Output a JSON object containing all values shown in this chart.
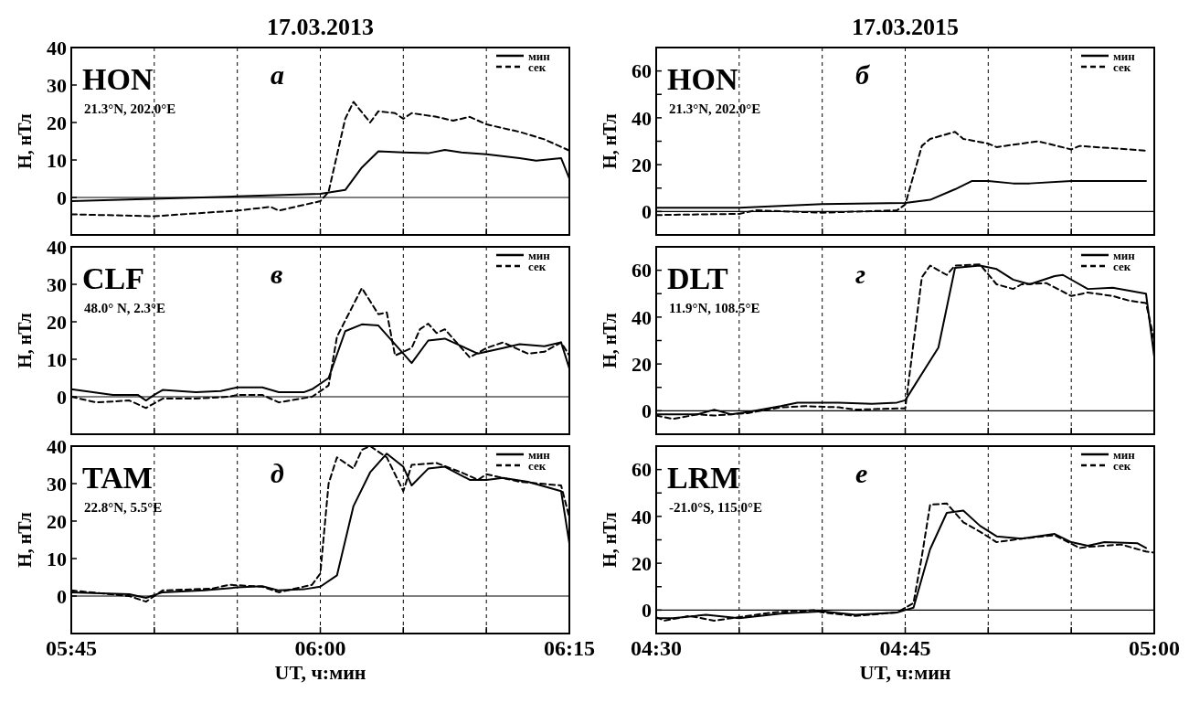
{
  "chart_data": [
    {
      "type": "line",
      "title": "17.03.2013",
      "ylabel": "H, нТл",
      "xlim": [
        5.75,
        6.25
      ],
      "ylim": [
        -10,
        40
      ],
      "xticks": [
        {
          "value": 5.75,
          "label": null
        },
        {
          "value": 5.8333,
          "label": null
        },
        {
          "value": 5.9167,
          "label": null
        },
        {
          "value": 6,
          "label": null
        },
        {
          "value": 6.0833,
          "label": null
        },
        {
          "value": 6.1667,
          "label": null
        },
        {
          "value": 6.25,
          "label": null
        }
      ],
      "yticks": [
        0,
        10,
        20,
        30,
        40
      ],
      "tick_labels": "y",
      "grid": "x",
      "legend": "top right",
      "ref_lines": [
        {
          "axis": "y",
          "value": 0
        }
      ],
      "annotations": [
        "HON",
        "а",
        "21.3°N, 202.0°E"
      ],
      "series": [
        {
          "name": "мин",
          "color": "#000000",
          "line_style": "solid",
          "x": [
            5.75,
            5.9167,
            6,
            6.025,
            6.0417,
            6.0583,
            6.0833,
            6.1083,
            6.125,
            6.1417,
            6.1667,
            6.2,
            6.2167,
            6.2417,
            6.25
          ],
          "values": [
            -1,
            0.3,
            1,
            2,
            8,
            12.3,
            12,
            11.8,
            12.7,
            12,
            11.5,
            10.5,
            9.8,
            10.5,
            5
          ]
        },
        {
          "name": "сек",
          "color": "#000000",
          "line_style": "dashed",
          "x": [
            5.75,
            5.8333,
            5.9167,
            5.95,
            5.9583,
            5.9833,
            6,
            6.0083,
            6.025,
            6.0333,
            6.05,
            6.0583,
            6.075,
            6.0833,
            6.0917,
            6.1167,
            6.1333,
            6.15,
            6.1667,
            6.2,
            6.225,
            6.25
          ],
          "values": [
            -4.5,
            -5,
            -3.5,
            -2.5,
            -3.5,
            -2,
            -1,
            1.5,
            21,
            25.5,
            20,
            23,
            22.5,
            21,
            22.5,
            21.5,
            20.5,
            21.5,
            19.5,
            17.5,
            15.5,
            12.5
          ]
        }
      ]
    },
    {
      "type": "line",
      "title": "17.03.2015",
      "ylabel": "H, нТл",
      "xlim": [
        4.5,
        5
      ],
      "ylim": [
        -10,
        70
      ],
      "xticks": [
        {
          "value": 4.5,
          "label": null
        },
        {
          "value": 4.5833,
          "label": null
        },
        {
          "value": 4.6667,
          "label": null
        },
        {
          "value": 4.75,
          "label": null
        },
        {
          "value": 4.8333,
          "label": null
        },
        {
          "value": 4.9167,
          "label": null
        },
        {
          "value": 5,
          "label": null
        }
      ],
      "yticks": [
        0,
        {
          "value": 10,
          "label": null
        },
        20,
        {
          "value": 30,
          "label": null
        },
        40,
        {
          "value": 50,
          "label": null
        },
        60
      ],
      "tick_labels": "y",
      "grid": "x",
      "legend": "top right",
      "ref_lines": [
        {
          "axis": "y",
          "value": 0
        }
      ],
      "annotations": [
        "HON",
        "б",
        "21.3°N, 202.0°E"
      ],
      "series": [
        {
          "name": "мин",
          "color": "#000000",
          "line_style": "solid",
          "x": [
            4.5,
            4.5833,
            4.6667,
            4.75,
            4.775,
            4.8,
            4.8167,
            4.8333,
            4.8583,
            4.875,
            4.9167,
            4.9917
          ],
          "values": [
            1.6,
            1.6,
            3.2,
            3.7,
            5,
            9.5,
            13,
            13,
            12,
            12,
            13,
            13
          ]
        },
        {
          "name": "сек",
          "color": "#000000",
          "line_style": "dashed",
          "x": [
            4.5,
            4.5833,
            4.6,
            4.6667,
            4.7417,
            4.75,
            4.7667,
            4.775,
            4.8,
            4.8083,
            4.8333,
            4.8417,
            4.8833,
            4.9167,
            4.925,
            4.9917
          ],
          "values": [
            -1.5,
            -1,
            0.5,
            -0.5,
            0.5,
            3,
            28,
            31,
            34,
            31,
            29,
            27.5,
            30,
            26.5,
            28,
            26
          ]
        }
      ]
    },
    {
      "type": "line",
      "ylabel": "H, нТл",
      "xlim": [
        5.75,
        6.25
      ],
      "ylim": [
        -10,
        40
      ],
      "xticks": [
        {
          "value": 5.75,
          "label": null
        },
        {
          "value": 5.8333,
          "label": null
        },
        {
          "value": 5.9167,
          "label": null
        },
        {
          "value": 6,
          "label": null
        },
        {
          "value": 6.0833,
          "label": null
        },
        {
          "value": 6.1667,
          "label": null
        },
        {
          "value": 6.25,
          "label": null
        }
      ],
      "yticks": [
        0,
        10,
        20,
        30,
        40
      ],
      "tick_labels": "y",
      "grid": "x",
      "legend": "top right",
      "ref_lines": [
        {
          "axis": "y",
          "value": 0
        }
      ],
      "annotations": [
        "CLF",
        "в",
        "48.0° N, 2.3°E"
      ],
      "series": [
        {
          "name": "мин",
          "color": "#000000",
          "line_style": "solid",
          "x": [
            5.75,
            5.7917,
            5.8167,
            5.825,
            5.8333,
            5.8417,
            5.875,
            5.9,
            5.9167,
            5.9417,
            5.9583,
            5.9833,
            5.9917,
            6.0083,
            6.025,
            6.0417,
            6.0583,
            6.075,
            6.0917,
            6.1083,
            6.125,
            6.1417,
            6.1583,
            6.1833,
            6.2,
            6.225,
            6.2417,
            6.25
          ],
          "values": [
            2,
            0.5,
            0.5,
            -1,
            0.5,
            1.8,
            1.2,
            1.5,
            2.5,
            2.5,
            1.2,
            1.2,
            2,
            5,
            17.5,
            19.3,
            19,
            14,
            9,
            15,
            15.5,
            13.5,
            11.5,
            13,
            14,
            13.5,
            14.5,
            7.5
          ]
        },
        {
          "name": "сек",
          "color": "#000000",
          "line_style": "dashed",
          "x": [
            5.75,
            5.775,
            5.8083,
            5.825,
            5.8417,
            5.875,
            5.9083,
            5.9167,
            5.9417,
            5.9583,
            5.9917,
            6.0083,
            6.0167,
            6.0417,
            6.0583,
            6.0667,
            6.075,
            6.0917,
            6.1,
            6.1083,
            6.1167,
            6.125,
            6.15,
            6.1667,
            6.1833,
            6.2083,
            6.225,
            6.2417,
            6.25
          ],
          "values": [
            0,
            -1.5,
            -1,
            -3,
            -0.5,
            -0.5,
            0,
            0.5,
            0.5,
            -1.5,
            0,
            3,
            16,
            29,
            22,
            22.5,
            11,
            13,
            18,
            19.5,
            17,
            18,
            10.5,
            13,
            14.5,
            11.5,
            12,
            14.5,
            11
          ]
        }
      ]
    },
    {
      "type": "line",
      "ylabel": "H, нТл",
      "xlim": [
        4.5,
        5
      ],
      "ylim": [
        -10,
        70
      ],
      "xticks": [
        {
          "value": 4.5,
          "label": null
        },
        {
          "value": 4.5833,
          "label": null
        },
        {
          "value": 4.6667,
          "label": null
        },
        {
          "value": 4.75,
          "label": null
        },
        {
          "value": 4.8333,
          "label": null
        },
        {
          "value": 4.9167,
          "label": null
        },
        {
          "value": 5,
          "label": null
        }
      ],
      "yticks": [
        0,
        {
          "value": 10,
          "label": null
        },
        20,
        {
          "value": 30,
          "label": null
        },
        40,
        {
          "value": 50,
          "label": null
        },
        60
      ],
      "tick_labels": "y",
      "grid": "x",
      "legend": "top right",
      "ref_lines": [
        {
          "axis": "y",
          "value": 0
        }
      ],
      "annotations": [
        "DLT",
        "г",
        "11.9°N, 108.5°E"
      ],
      "series": [
        {
          "name": "мин",
          "color": "#000000",
          "line_style": "solid",
          "x": [
            4.5,
            4.5417,
            4.5583,
            4.575,
            4.5917,
            4.625,
            4.6417,
            4.6833,
            4.7167,
            4.7417,
            4.75,
            4.7833,
            4.8,
            4.825,
            4.8417,
            4.8583,
            4.875,
            4.9,
            4.9083,
            4.9333,
            4.9583,
            4.9917,
            5
          ],
          "values": [
            -1.5,
            -1.5,
            0.5,
            -1.5,
            -0.5,
            2,
            3.5,
            3.5,
            3,
            3.5,
            4.5,
            27,
            61,
            62,
            60.5,
            56,
            54,
            57.5,
            58,
            52,
            52.5,
            50,
            23
          ]
        },
        {
          "name": "сек",
          "color": "#000000",
          "line_style": "dashed",
          "x": [
            4.5,
            4.5167,
            4.5417,
            4.5583,
            4.575,
            4.5917,
            4.625,
            4.65,
            4.6833,
            4.7,
            4.7417,
            4.75,
            4.7667,
            4.775,
            4.7917,
            4.8,
            4.825,
            4.8417,
            4.8583,
            4.8667,
            4.8917,
            4.9167,
            4.9333,
            4.9583,
            4.975,
            4.9917,
            5
          ],
          "values": [
            -2,
            -3.5,
            -1.5,
            -2,
            -1.5,
            -1,
            1.5,
            2,
            1.5,
            0.5,
            1,
            1,
            57,
            62,
            58,
            62,
            62.5,
            54,
            52,
            54,
            54.5,
            49,
            50.5,
            49,
            47,
            46,
            30
          ]
        }
      ]
    },
    {
      "type": "line",
      "xlabel": "UT, ч:мин",
      "ylabel": "H, нТл",
      "xlim": [
        5.75,
        6.25
      ],
      "ylim": [
        -10,
        40
      ],
      "xticks": [
        {
          "value": 5.75,
          "label": "05:45"
        },
        {
          "value": 5.8333,
          "label": null
        },
        {
          "value": 5.9167,
          "label": null
        },
        {
          "value": 6,
          "label": "06:00"
        },
        {
          "value": 6.0833,
          "label": null
        },
        {
          "value": 6.1667,
          "label": null
        },
        {
          "value": 6.25,
          "label": "06:15"
        }
      ],
      "yticks": [
        0,
        10,
        20,
        30,
        40
      ],
      "grid": "x",
      "legend": "top right",
      "ref_lines": [
        {
          "axis": "y",
          "value": 0
        }
      ],
      "annotations": [
        "TAM",
        "д",
        "22.8°N, 5.5°E"
      ],
      "series": [
        {
          "name": "мин",
          "color": "#000000",
          "line_style": "solid",
          "x": [
            5.75,
            5.8083,
            5.825,
            5.8417,
            5.8833,
            5.9167,
            5.9417,
            5.9583,
            5.9833,
            6,
            6.0167,
            6.0333,
            6.05,
            6.0667,
            6.0833,
            6.0917,
            6.1083,
            6.125,
            6.15,
            6.1667,
            6.1833,
            6.2083,
            6.2417,
            6.25
          ],
          "values": [
            1,
            0.5,
            -0.5,
            1,
            1.5,
            2.3,
            2.6,
            1.5,
            1.8,
            2.5,
            5.5,
            24,
            33,
            38,
            34.5,
            29.5,
            34,
            34.5,
            31,
            31,
            31.5,
            30.5,
            28,
            14
          ]
        },
        {
          "name": "сек",
          "color": "#000000",
          "line_style": "dashed",
          "x": [
            5.75,
            5.8083,
            5.825,
            5.8417,
            5.8917,
            5.9083,
            5.9417,
            5.9583,
            5.9917,
            6,
            6.0083,
            6.0167,
            6.0333,
            6.0417,
            6.05,
            6.0667,
            6.0833,
            6.0917,
            6.1167,
            6.1417,
            6.1583,
            6.1667,
            6.2,
            6.2417,
            6.25
          ],
          "values": [
            1.5,
            0,
            -1.5,
            1.5,
            2,
            3,
            2.5,
            1,
            3,
            6,
            30,
            37,
            34,
            39,
            40,
            37,
            28,
            35,
            35.5,
            33,
            31,
            32.5,
            30.5,
            29.5,
            21
          ]
        }
      ]
    },
    {
      "type": "line",
      "xlabel": "UT, ч:мин",
      "ylabel": "H, нТл",
      "xlim": [
        4.5,
        5
      ],
      "ylim": [
        -10,
        70
      ],
      "xticks": [
        {
          "value": 4.5,
          "label": "04:30"
        },
        {
          "value": 4.5833,
          "label": null
        },
        {
          "value": 4.6667,
          "label": null
        },
        {
          "value": 4.75,
          "label": "04:45"
        },
        {
          "value": 4.8333,
          "label": null
        },
        {
          "value": 4.9167,
          "label": null
        },
        {
          "value": 5,
          "label": "05:00"
        }
      ],
      "yticks": [
        0,
        {
          "value": 10,
          "label": null
        },
        20,
        {
          "value": 30,
          "label": null
        },
        40,
        {
          "value": 50,
          "label": null
        },
        60
      ],
      "grid": "x",
      "legend": "top right",
      "ref_lines": [
        {
          "axis": "y",
          "value": 0
        }
      ],
      "annotations": [
        "LRM",
        "е",
        "-21.0°S, 115.0°E"
      ],
      "series": [
        {
          "name": "мин",
          "color": "#000000",
          "line_style": "solid",
          "x": [
            4.5,
            4.5167,
            4.55,
            4.5833,
            4.625,
            4.6667,
            4.7,
            4.7417,
            4.75,
            4.7583,
            4.775,
            4.7917,
            4.8083,
            4.825,
            4.8417,
            4.8667,
            4.9,
            4.9167,
            4.9333,
            4.95,
            4.9833,
            4.9917
          ],
          "values": [
            -3.5,
            -3.5,
            -2,
            -3.5,
            -1.5,
            -0.5,
            -2,
            -1,
            0,
            1,
            26,
            41.5,
            42.5,
            36,
            31.5,
            30.5,
            32.5,
            29,
            27.5,
            29,
            28.5,
            26.5
          ]
        },
        {
          "name": "сек",
          "color": "#000000",
          "line_style": "dashed",
          "x": [
            4.5,
            4.5083,
            4.5333,
            4.5583,
            4.5833,
            4.6167,
            4.6583,
            4.6667,
            4.7,
            4.7417,
            4.7583,
            4.7667,
            4.775,
            4.7917,
            4.8083,
            4.825,
            4.8417,
            4.8667,
            4.9,
            4.925,
            4.9333,
            4.9667,
            4.9917,
            5
          ],
          "values": [
            -3,
            -4.5,
            -2.5,
            -4.5,
            -3,
            -1,
            0,
            -1,
            -2.5,
            -1,
            3,
            23,
            45,
            45.5,
            37.5,
            33.5,
            29,
            30.5,
            32,
            26.5,
            27,
            28,
            25,
            24.5
          ]
        }
      ]
    }
  ]
}
